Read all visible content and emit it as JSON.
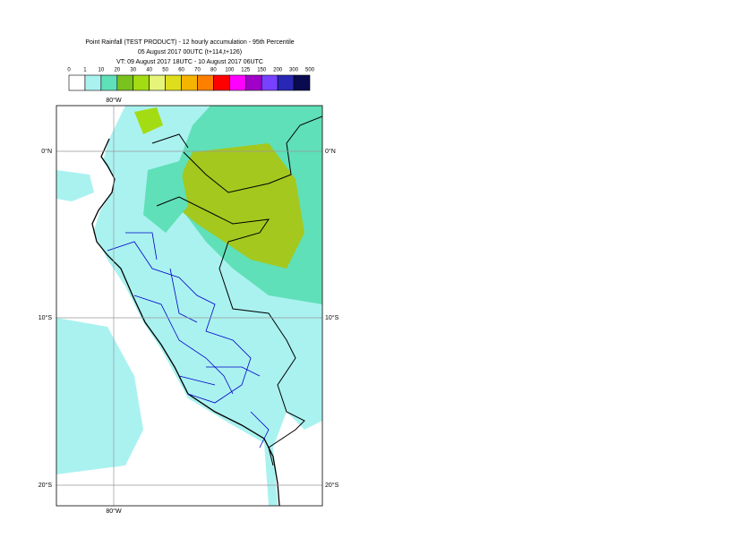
{
  "header": {
    "title_lines": [
      "Point Rainfall (TEST PRODUCT) - 12 hourly accumulation - 95th Percentile",
      "05 August 2017 00UTC (t+114,t+126)",
      "VT: 09 August 2017 18UTC - 10 August 2017 06UTC"
    ]
  },
  "legend": {
    "labels": [
      "0",
      "1",
      "10",
      "20",
      "30",
      "40",
      "50",
      "60",
      "70",
      "80",
      "100",
      "125",
      "150",
      "200",
      "300",
      "500"
    ],
    "colors": [
      "#ffffff",
      "#aaf2f0",
      "#5fe0b8",
      "#7ac21e",
      "#a4dc14",
      "#e6f57a",
      "#dede1e",
      "#f5b400",
      "#ff8000",
      "#ff0000",
      "#ff00ff",
      "#a000c8",
      "#7840ff",
      "#2828b4",
      "#0a0a50"
    ]
  },
  "map": {
    "lon_labels": [
      "80°W"
    ],
    "lat_labels": [
      "0°N",
      "10°S",
      "20°S"
    ]
  }
}
